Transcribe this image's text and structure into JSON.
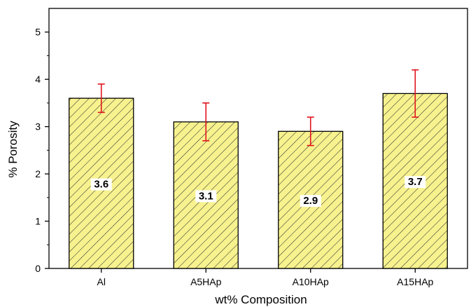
{
  "chart_data": {
    "type": "bar",
    "categories": [
      "Al",
      "A5HAp",
      "A10HAp",
      "A15HAp"
    ],
    "values": [
      3.6,
      3.1,
      2.9,
      3.7
    ],
    "errors": [
      0.3,
      0.4,
      0.3,
      0.5
    ],
    "data_labels": [
      "3.6",
      "3.1",
      "2.9",
      "3.7"
    ],
    "xlabel": "wt% Composition",
    "ylabel": "% Porosity",
    "ylim": [
      0,
      5.5
    ],
    "yticks": [
      0,
      1,
      2,
      3,
      4,
      5
    ],
    "grid": false,
    "bar_fill": "#f7f28e",
    "bar_hatch_color": "#333333",
    "error_bar_color": "#e0141e"
  }
}
